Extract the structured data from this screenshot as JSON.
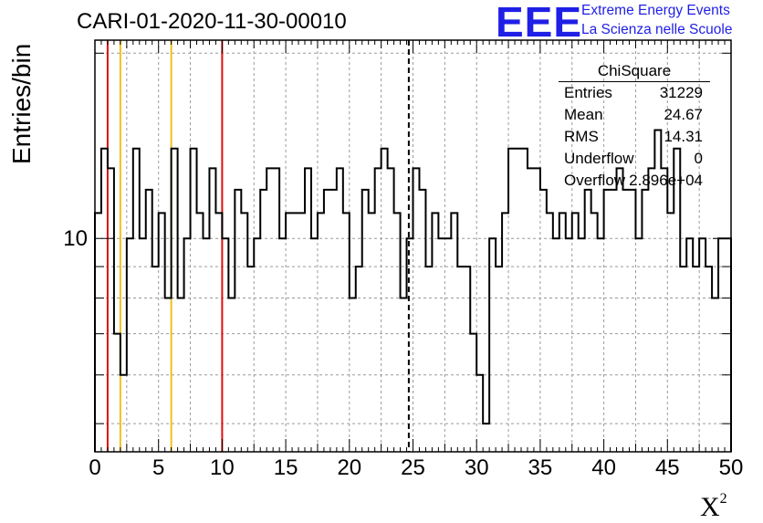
{
  "header": {
    "title": "CARI-01-2020-11-30-00010",
    "logo_text": "EEE",
    "org_line1": "Extreme Energy Events",
    "org_line2": "La Scienza nelle Scuole"
  },
  "stats_box": {
    "title": "ChiSquare",
    "entries_label": "Entries",
    "entries_value": "31229",
    "mean_label": "Mean",
    "mean_value": "24.67",
    "rms_label": "RMS",
    "rms_value": "14.31",
    "underflow_label": "Underflow",
    "underflow_value": "0",
    "overflow_label": "Overflow",
    "overflow_value": "2.896e+04"
  },
  "colors": {
    "red_line": "#e01010",
    "yellow_line": "#f0c020",
    "hist": "#000000",
    "logo": "#1f1fe6"
  },
  "chart_data": {
    "type": "histogram",
    "title": "CARI-01-2020-11-30-00010",
    "xlabel": "X²",
    "ylabel": "Entries/bin",
    "xlim": [
      0,
      50
    ],
    "ylim_log": [
      4.5,
      21
    ],
    "yscale": "log",
    "bin_width": 0.5,
    "xticks": [
      0,
      5,
      10,
      15,
      20,
      25,
      30,
      35,
      40,
      45,
      50
    ],
    "xtick_labels": [
      "0",
      "5",
      "10",
      "15",
      "20",
      "25",
      "30",
      "35",
      "40",
      "45",
      "50"
    ],
    "ytick_major": [
      10
    ],
    "ytick_major_labels": [
      "10"
    ],
    "ytick_minor": [
      5,
      6,
      7,
      8,
      9,
      20
    ],
    "grid": true,
    "counts": [
      11,
      14,
      13,
      7,
      6,
      10,
      14,
      10,
      12,
      9,
      11,
      8,
      14,
      8,
      10,
      14,
      11,
      10,
      13,
      11,
      10,
      8,
      12,
      11,
      9,
      10,
      12,
      13,
      13,
      10,
      11,
      11,
      11,
      13,
      10,
      11,
      12,
      12,
      13,
      11,
      8,
      9,
      12,
      11,
      13,
      14,
      13,
      11,
      8,
      10,
      13,
      12,
      9,
      11,
      10,
      10,
      11,
      9,
      9,
      7,
      6,
      5,
      10,
      9,
      11,
      14,
      14,
      14,
      13,
      13,
      12,
      11,
      10,
      11,
      10,
      11,
      10,
      12,
      11,
      10,
      12,
      12,
      13,
      12,
      12,
      10,
      12,
      13,
      15,
      13,
      11,
      14,
      9,
      10,
      9,
      10,
      9,
      8,
      10,
      10
    ],
    "vlines": [
      {
        "x": 1.0,
        "color": "red",
        "style": "solid"
      },
      {
        "x": 2.0,
        "color": "yellow",
        "style": "solid"
      },
      {
        "x": 6.0,
        "color": "yellow",
        "style": "solid"
      },
      {
        "x": 10.0,
        "color": "red",
        "style": "solid"
      },
      {
        "x": 24.67,
        "color": "black",
        "style": "dashed"
      }
    ]
  }
}
